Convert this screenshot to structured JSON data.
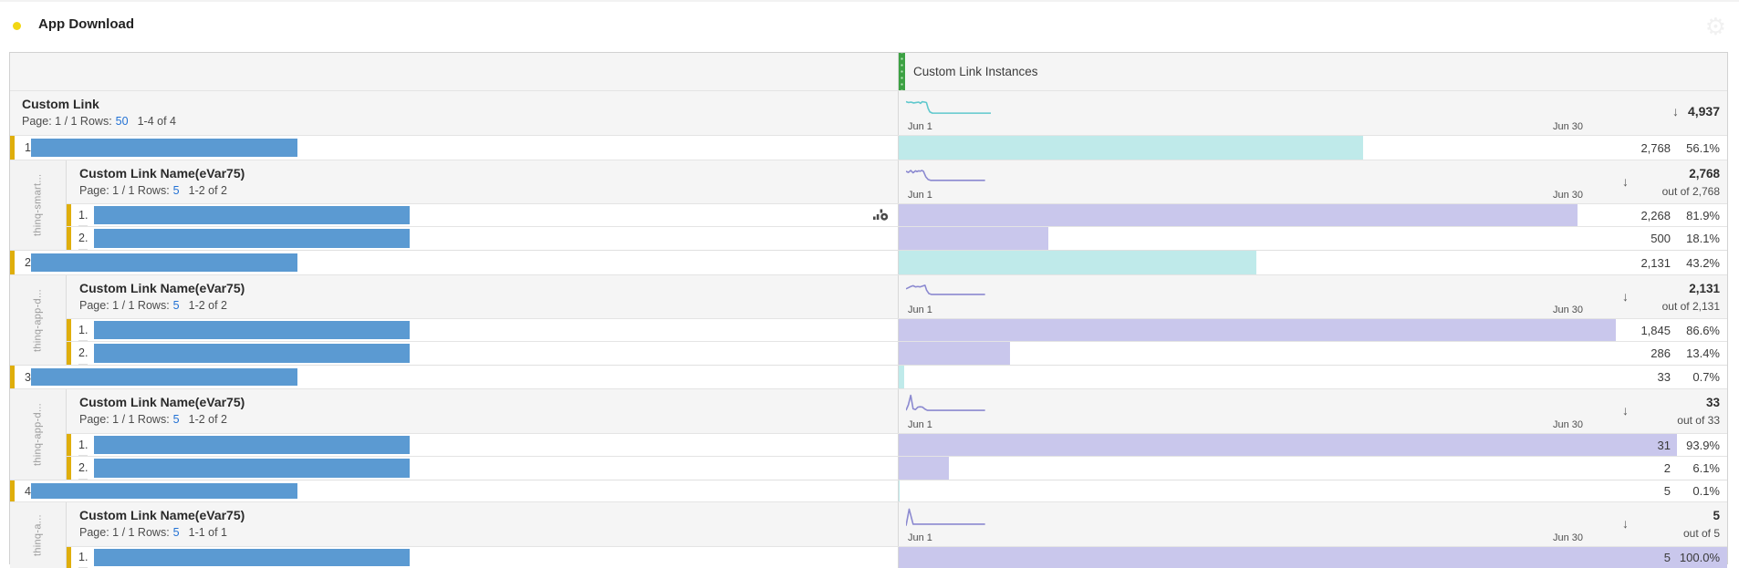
{
  "panel": {
    "title": "App Download",
    "status_dot_icon": "yellow-dot",
    "settings_icon": "gear-icon"
  },
  "labels": {
    "page_prefix": "Page: 1 / 1 Rows:",
    "date_start": "Jun 1",
    "date_end": "Jun 30",
    "sort_arrow": "↓"
  },
  "table": {
    "metric_header": {
      "label": "Custom Link Instances"
    },
    "dimension_header": {
      "title": "Custom Link",
      "rows_link": "50",
      "range": "1-4 of 4",
      "total": "4,937"
    },
    "breakdown_dimension": "Custom Link Name(eVar75)",
    "colors": {
      "tealbar": "#bfeaea",
      "purplebar": "#c9c7ec",
      "tealline": "#5fc8cd",
      "purpleline": "#8b89d0",
      "redacted": "#5b9ad2",
      "marker": "#dfae0c",
      "dot": "#f2d713",
      "link": "#2271d4",
      "handle": "#3ca143"
    },
    "top_sparkline": [
      [
        0,
        7
      ],
      [
        3,
        8
      ],
      [
        6,
        7.5
      ],
      [
        9,
        8.5
      ],
      [
        12,
        8
      ],
      [
        15,
        7.5
      ],
      [
        17,
        9
      ],
      [
        19,
        7
      ],
      [
        22,
        7.5
      ],
      [
        24,
        8
      ],
      [
        26,
        15
      ],
      [
        28,
        19
      ],
      [
        31,
        20.5
      ],
      [
        100,
        20.5
      ]
    ],
    "rows": [
      {
        "index": "1",
        "value": "2,768",
        "pct": "56.1%",
        "bar_pct": 56.1,
        "breakdown": {
          "gutter_label": "thinq-smart...",
          "rows_link": "5",
          "range": "1-2 of 2",
          "total": "2,768",
          "out_of": "out of 2,768",
          "sparkline": [
            [
              0,
              9
            ],
            [
              3,
              10.5
            ],
            [
              6,
              8
            ],
            [
              9,
              11
            ],
            [
              12,
              8.5
            ],
            [
              14,
              9.5
            ],
            [
              16,
              8.5
            ],
            [
              18,
              9
            ],
            [
              20,
              8
            ],
            [
              22,
              9
            ],
            [
              25,
              16
            ],
            [
              28,
              19.5
            ],
            [
              31,
              20.5
            ],
            [
              100,
              20.5
            ]
          ],
          "items": [
            {
              "index": "1.",
              "value": "2,268",
              "pct": "81.9%",
              "bar_pct": 81.9,
              "trend_icon": "visualize-trend-icon"
            },
            {
              "index": "2.",
              "value": "500",
              "pct": "18.1%",
              "bar_pct": 18.1
            }
          ]
        }
      },
      {
        "index": "2",
        "value": "2,131",
        "pct": "43.2%",
        "bar_pct": 43.2,
        "breakdown": {
          "gutter_label": "thinq-app-d...",
          "rows_link": "5",
          "range": "1-2 of 2",
          "total": "2,131",
          "out_of": "out of 2,131",
          "sparkline": [
            [
              0,
              12.5
            ],
            [
              3,
              11
            ],
            [
              6,
              9.5
            ],
            [
              9,
              8.5
            ],
            [
              12,
              10
            ],
            [
              15,
              9.5
            ],
            [
              18,
              10
            ],
            [
              21,
              9
            ],
            [
              24,
              8
            ],
            [
              26,
              14
            ],
            [
              29,
              18.5
            ],
            [
              32,
              19.5
            ],
            [
              100,
              19.5
            ]
          ],
          "items": [
            {
              "index": "1.",
              "value": "1,845",
              "pct": "86.6%",
              "bar_pct": 86.6
            },
            {
              "index": "2.",
              "value": "286",
              "pct": "13.4%",
              "bar_pct": 13.4
            }
          ]
        }
      },
      {
        "index": "3",
        "value": "33",
        "pct": "0.7%",
        "bar_pct": 0.7,
        "breakdown": {
          "gutter_label": "thinq-app-d...",
          "rows_link": "5",
          "range": "1-2 of 2",
          "total": "33",
          "out_of": "out of 33",
          "sparkline": [
            [
              0,
              22
            ],
            [
              3,
              15
            ],
            [
              6,
              3
            ],
            [
              9,
              20
            ],
            [
              12,
              21
            ],
            [
              15,
              18
            ],
            [
              18,
              17.5
            ],
            [
              21,
              18
            ],
            [
              24,
              20.5
            ],
            [
              27,
              22
            ],
            [
              100,
              22
            ]
          ],
          "items": [
            {
              "index": "1.",
              "value": "31",
              "pct": "93.9%",
              "bar_pct": 93.9
            },
            {
              "index": "2.",
              "value": "2",
              "pct": "6.1%",
              "bar_pct": 6.1
            }
          ]
        }
      },
      {
        "index": "4",
        "value": "5",
        "pct": "0.1%",
        "bar_pct": 0.1,
        "breakdown": {
          "gutter_label": "thinq-a...",
          "rows_link": "5",
          "range": "1-1 of 1",
          "total": "5",
          "out_of": "out of 5",
          "sparkline": [
            [
              0,
              25
            ],
            [
              4,
              4
            ],
            [
              9,
              23
            ],
            [
              100,
              23
            ]
          ],
          "items": [
            {
              "index": "1.",
              "value": "5",
              "pct": "100.0%",
              "bar_pct": 100
            }
          ]
        }
      }
    ]
  }
}
